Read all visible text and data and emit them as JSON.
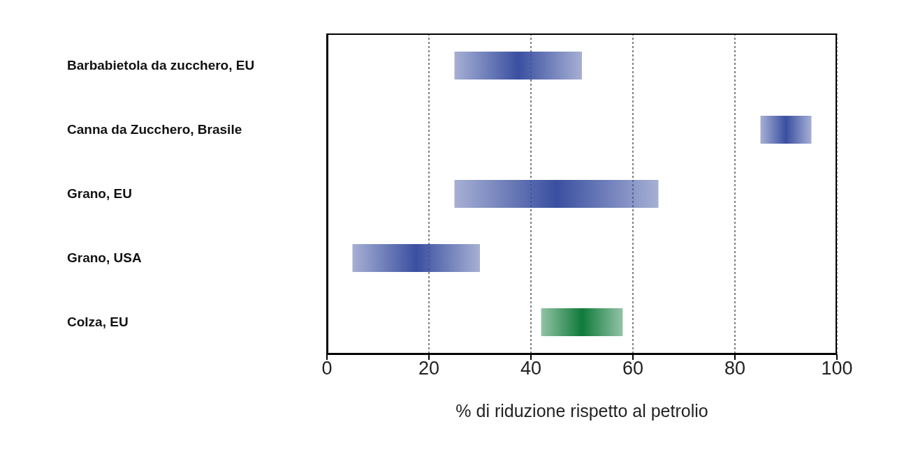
{
  "chart_data": {
    "type": "bar",
    "orientation": "horizontal",
    "categories": [
      "Barbabietola da zucchero, EU",
      "Canna da Zucchero, Brasile",
      "Grano, EU",
      "Grano, USA",
      "Colza, EU"
    ],
    "base": [
      25,
      85,
      25,
      5,
      42
    ],
    "values": [
      25,
      10,
      40,
      25,
      16
    ],
    "colors": [
      "#3a4fa0",
      "#3a4fa0",
      "#3a4fa0",
      "#3a4fa0",
      "#0f7a3a"
    ],
    "xlim": [
      0,
      100
    ],
    "xticks": [
      0,
      20,
      40,
      60,
      80,
      100
    ],
    "xlabel": "% di riduzione rispetto al petrolio",
    "grid": "x"
  }
}
